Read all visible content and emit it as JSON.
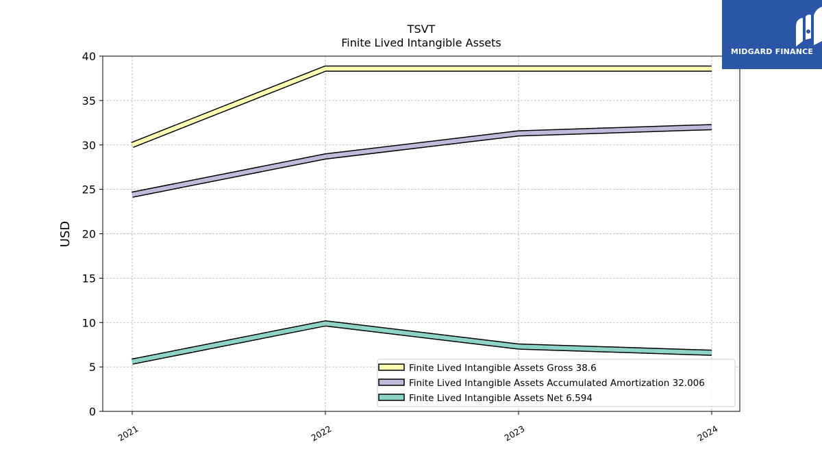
{
  "chart_data": {
    "type": "line",
    "title": "TSVT",
    "subtitle": "Finite Lived Intangible Assets",
    "ylabel": "USD",
    "xlabel": "",
    "x": [
      "2021",
      "2022",
      "2023",
      "2024"
    ],
    "ylim": [
      0,
      40
    ],
    "yticks": [
      "0",
      "5",
      "10",
      "15",
      "20",
      "25",
      "30",
      "35",
      "40"
    ],
    "grid": true,
    "legend_position": "bottom-right",
    "series": [
      {
        "name": "Finite Lived Intangible Assets Gross",
        "legend": "Finite Lived Intangible Assets Gross  38.6",
        "values": [
          30.0,
          38.6,
          38.6,
          38.6
        ],
        "color": "#ffffb3"
      },
      {
        "name": "Finite Lived Intangible Assets Accumulated Amortization",
        "legend": "Finite Lived Intangible Assets Accumulated Amortization  32.006",
        "values": [
          24.4,
          28.7,
          31.3,
          32.006
        ],
        "color": "#bebada"
      },
      {
        "name": "Finite Lived Intangible Assets Net",
        "legend": "Finite Lived Intangible Assets Net  6.594",
        "values": [
          5.6,
          9.9,
          7.3,
          6.594
        ],
        "color": "#8dd3c7"
      }
    ]
  },
  "logo": {
    "text": "MIDGARD FINANCE",
    "background": "#2b56a8"
  }
}
